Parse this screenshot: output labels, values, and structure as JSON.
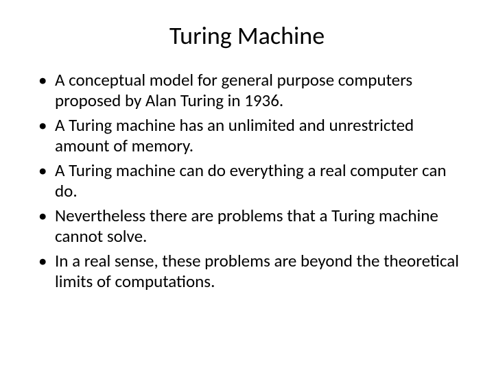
{
  "slide": {
    "title": "Turing Machine",
    "title_fontsize": 36,
    "body_fontsize": 25,
    "background_color": "#ffffff",
    "text_color": "#000000",
    "font_family": "Calibri",
    "bullets": [
      "A conceptual model for general purpose computers proposed by Alan Turing in 1936.",
      "A Turing machine has an unlimited and unrestricted amount of memory.",
      "A Turing machine can do everything a real computer can do.",
      "Nevertheless there are problems that a Turing machine cannot solve.",
      "In a real sense, these problems are beyond the theoretical limits of computations."
    ]
  }
}
